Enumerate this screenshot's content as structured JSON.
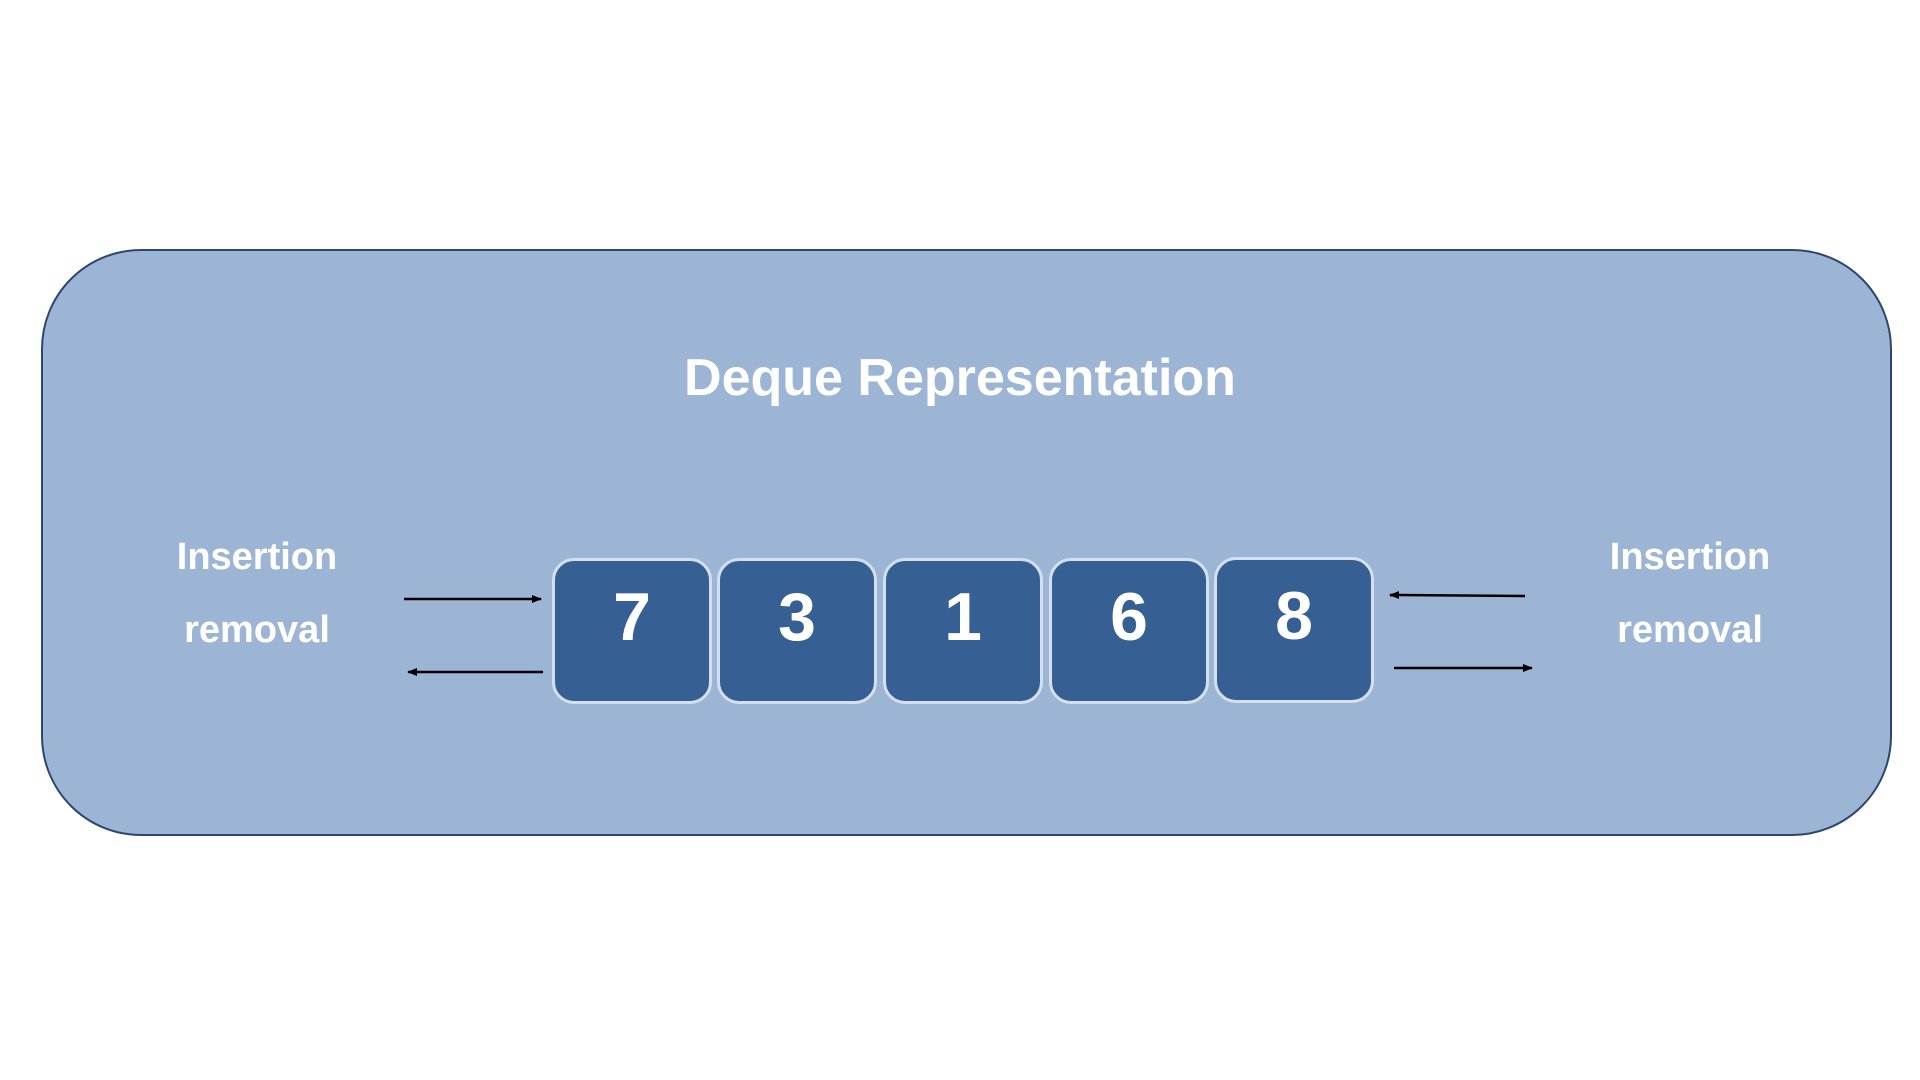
{
  "diagram": {
    "title": "Deque Representation",
    "left": {
      "insertion_label": "Insertion",
      "removal_label": "removal"
    },
    "right": {
      "insertion_label": "Insertion",
      "removal_label": "removal"
    },
    "elements": [
      "7",
      "3",
      "1",
      "6",
      "8"
    ],
    "colors": {
      "panel_fill": "#9db5d5",
      "panel_border": "#2c4670",
      "cell_fill": "#365f93",
      "cell_border": "#d5e0ee",
      "text": "#ffffff",
      "arrow": "#000000"
    }
  }
}
